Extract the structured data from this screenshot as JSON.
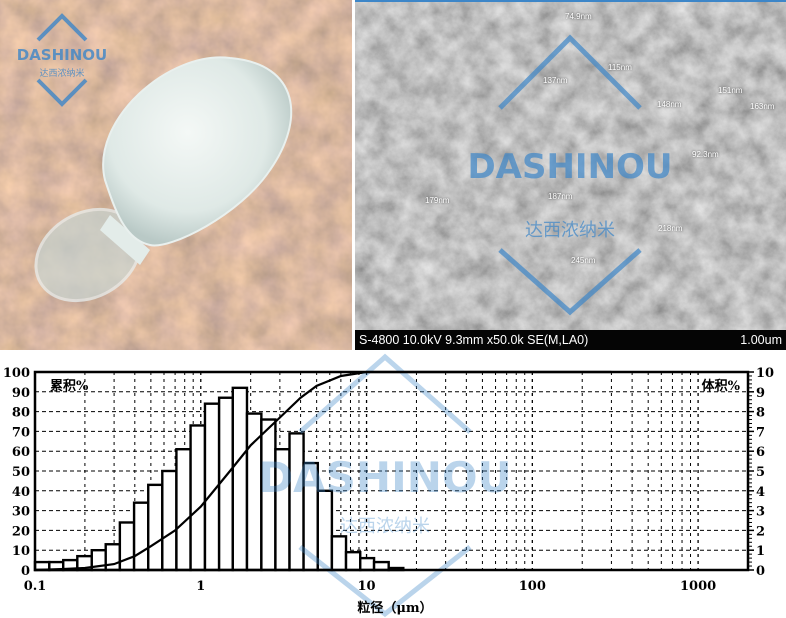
{
  "watermark": {
    "brand": "DASHINOU",
    "brand_cn": "达西浓纳米"
  },
  "sem": {
    "info": "S-4800 10.0kV 9.3mm x50.0k SE(M,LA0)",
    "scale": "1.00um",
    "measurements": [
      "74.9nm",
      "137nm",
      "115nm",
      "151nm",
      "148nm",
      "163nm",
      "92.3nm",
      "179nm",
      "187nm",
      "218nm",
      "245nm"
    ]
  },
  "chart_data": {
    "type": "bar",
    "xlabel": "粒径（μm）",
    "ylabel_left": "累积%",
    "ylabel_right": "体积%",
    "x_scale": "log",
    "xlim": [
      0.1,
      2000
    ],
    "x_ticks": [
      "0.1",
      "1",
      "10",
      "100",
      "1000"
    ],
    "ylim_left": [
      0,
      100
    ],
    "ylim_right": [
      0,
      10
    ],
    "y_ticks_left": [
      "0",
      "10",
      "20",
      "30",
      "40",
      "50",
      "60",
      "70",
      "80",
      "90",
      "100"
    ],
    "y_ticks_right": [
      "0",
      "1",
      "2",
      "3",
      "4",
      "5",
      "6",
      "7",
      "8",
      "9",
      "10"
    ],
    "grid": true,
    "series": [
      {
        "kind": "bar",
        "axis": "right",
        "bin_lower_um": [
          0.1,
          0.122,
          0.148,
          0.18,
          0.22,
          0.267,
          0.325,
          0.396,
          0.482,
          0.586,
          0.713,
          0.868,
          1.06,
          1.29,
          1.56,
          1.9,
          2.32,
          2.82,
          3.43,
          4.17,
          5.08,
          6.18,
          7.52,
          9.16,
          11.1,
          13.6
        ],
        "values": [
          0.4,
          0.4,
          0.5,
          0.7,
          1.0,
          1.3,
          2.4,
          3.4,
          4.3,
          5.0,
          6.1,
          7.3,
          8.4,
          8.7,
          9.2,
          7.9,
          7.6,
          6.1,
          6.9,
          5.4,
          4.0,
          1.7,
          0.9,
          0.6,
          0.4,
          0.1
        ]
      },
      {
        "kind": "line",
        "axis": "left",
        "x": [
          0.1,
          0.15,
          0.2,
          0.3,
          0.4,
          0.5,
          0.7,
          1,
          1.5,
          2,
          3,
          4,
          5,
          7,
          10,
          20,
          100,
          300
        ],
        "y": [
          0,
          0.5,
          1,
          3,
          7,
          12,
          20,
          32,
          50,
          63,
          77,
          87,
          93,
          98,
          100,
          100,
          100,
          100
        ]
      }
    ]
  }
}
